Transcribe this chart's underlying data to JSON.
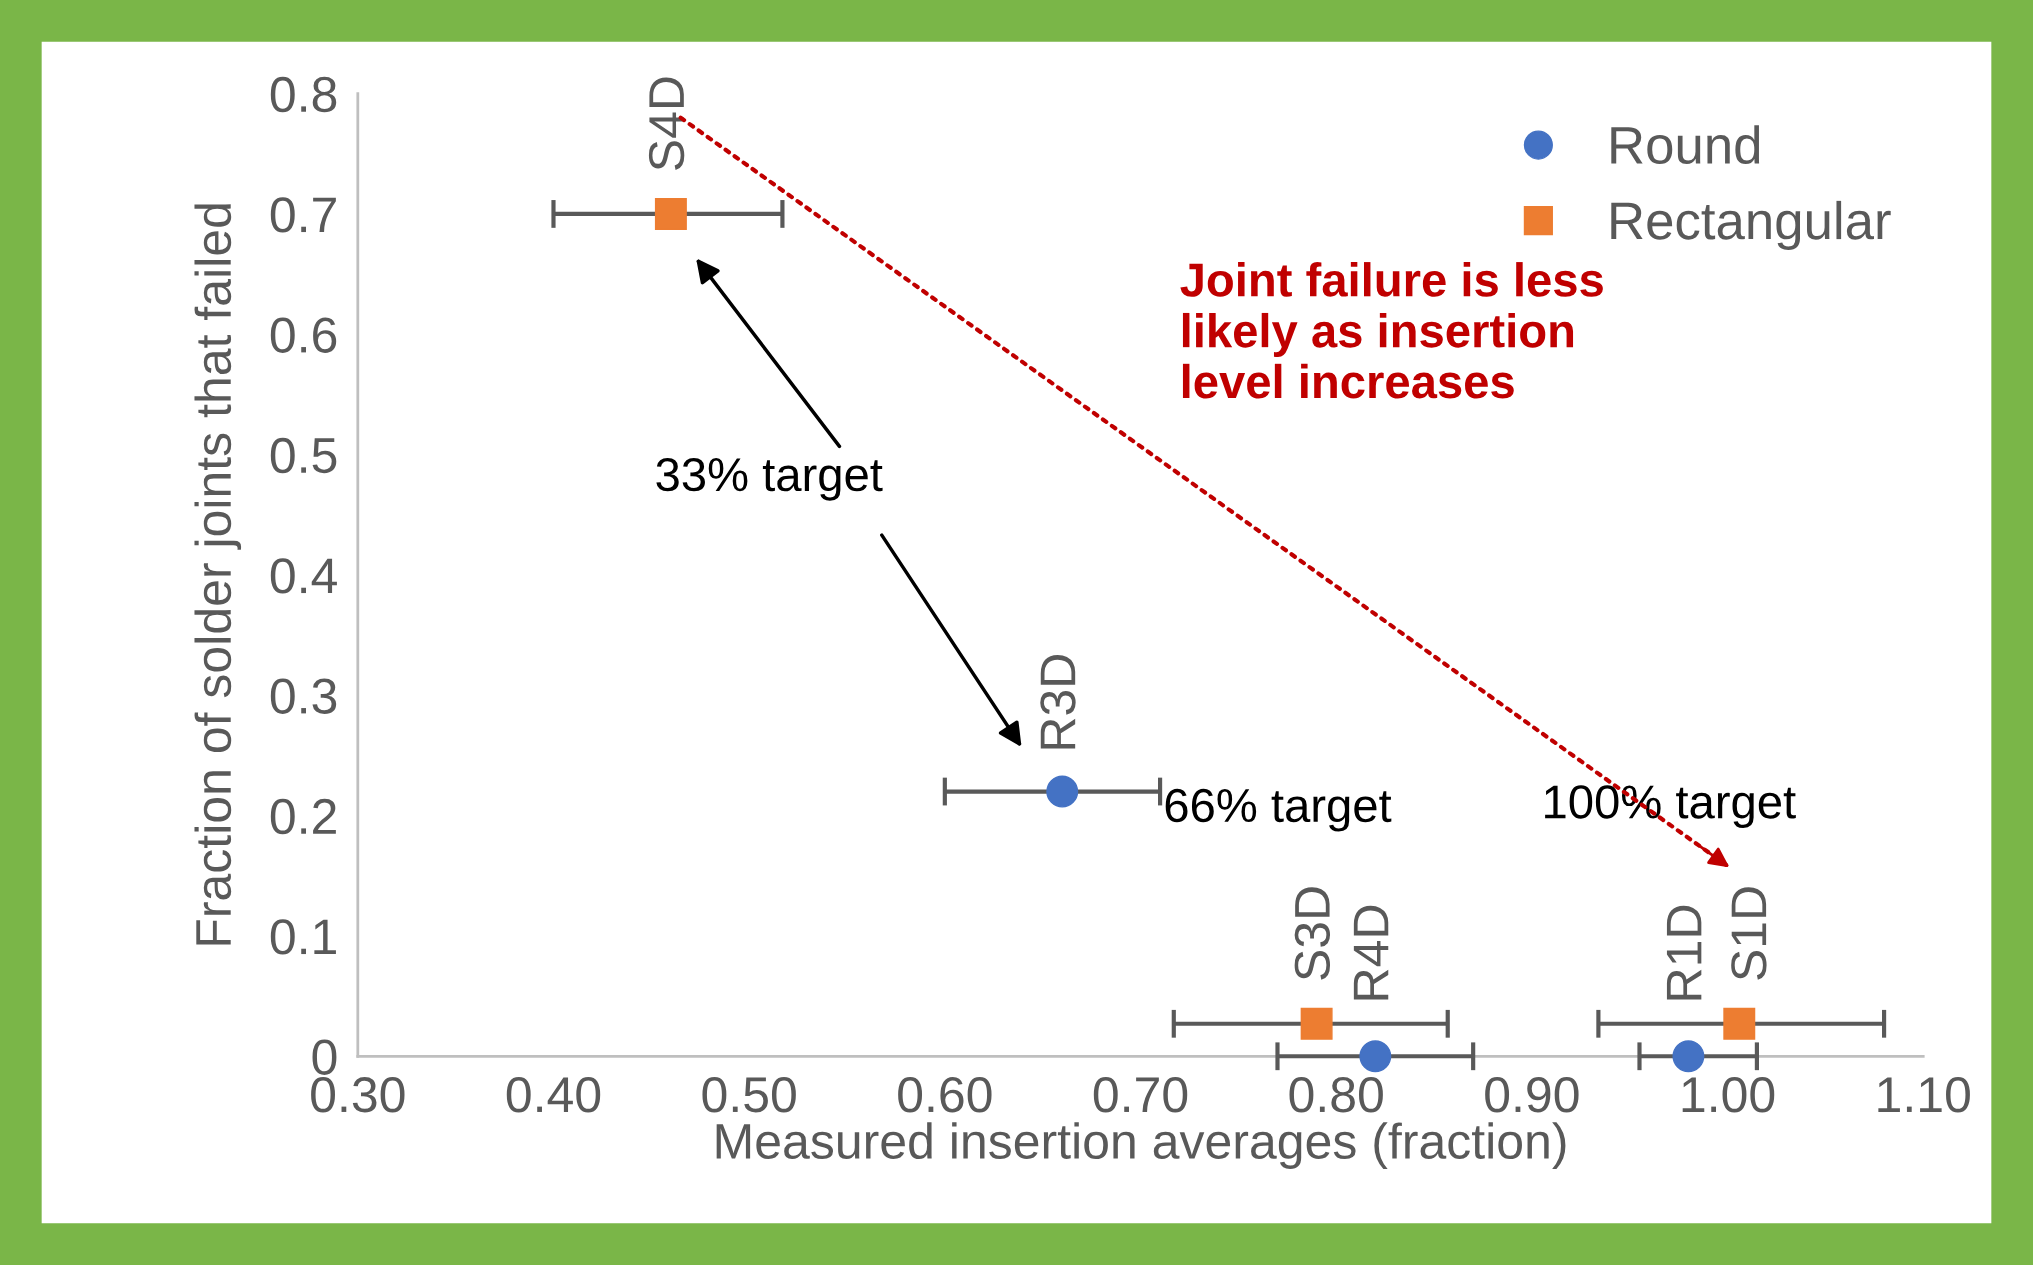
{
  "chart_data": {
    "type": "scatter",
    "xlabel": "Measured insertion averages (fraction)",
    "ylabel": "Fraction of solder joints that failed",
    "xlim": [
      0.3,
      1.1
    ],
    "ylim": [
      0,
      0.8
    ],
    "xticks": [
      {
        "value": 0.3,
        "label": "0.30"
      },
      {
        "value": 0.4,
        "label": "0.40"
      },
      {
        "value": 0.5,
        "label": "0.50"
      },
      {
        "value": 0.6,
        "label": "0.60"
      },
      {
        "value": 0.7,
        "label": "0.70"
      },
      {
        "value": 0.8,
        "label": "0.80"
      },
      {
        "value": 0.9,
        "label": "0.90"
      },
      {
        "value": 1.0,
        "label": "1.00"
      },
      {
        "value": 1.1,
        "label": "1.10"
      }
    ],
    "yticks": [
      0,
      0.1,
      0.2,
      0.3,
      0.4,
      0.5,
      0.6,
      0.7,
      0.8
    ],
    "grid": false,
    "legend": "top right",
    "series": [
      {
        "name": "Round",
        "color": "#4472c4",
        "marker": "circle",
        "x": [
          0.66,
          0.82,
          0.98
        ],
        "values": [
          0.22,
          0,
          0
        ],
        "xerrors": [
          [
            0.6,
            0.71
          ],
          [
            0.77,
            0.87
          ],
          [
            0.955,
            1.015
          ]
        ]
      },
      {
        "name": "Rectangular",
        "color": "#ed7d31",
        "marker": "square",
        "x": [
          0.46,
          0.79,
          1.006
        ],
        "values": [
          0.7,
          0.027,
          0.027
        ],
        "xerrors": [
          [
            0.4,
            0.517
          ],
          [
            0.717,
            0.857
          ],
          [
            0.934,
            1.08
          ]
        ]
      }
    ],
    "annotations": [
      {
        "text": "R3D",
        "x": 0.66,
        "y": 0.22
      },
      {
        "text": "R4D",
        "x": 0.82,
        "y": 0
      },
      {
        "text": "R1D",
        "x": 0.98,
        "y": 0
      },
      {
        "text": "S4D",
        "x": 0.46,
        "y": 0.7
      },
      {
        "text": "S3D",
        "x": 0.79,
        "y": 0.027
      },
      {
        "text": "S1D",
        "x": 1.006,
        "y": 0.027
      },
      "33% target",
      "66% target",
      "100% target",
      "Joint failure is less likely as insertion level increases"
    ]
  }
}
